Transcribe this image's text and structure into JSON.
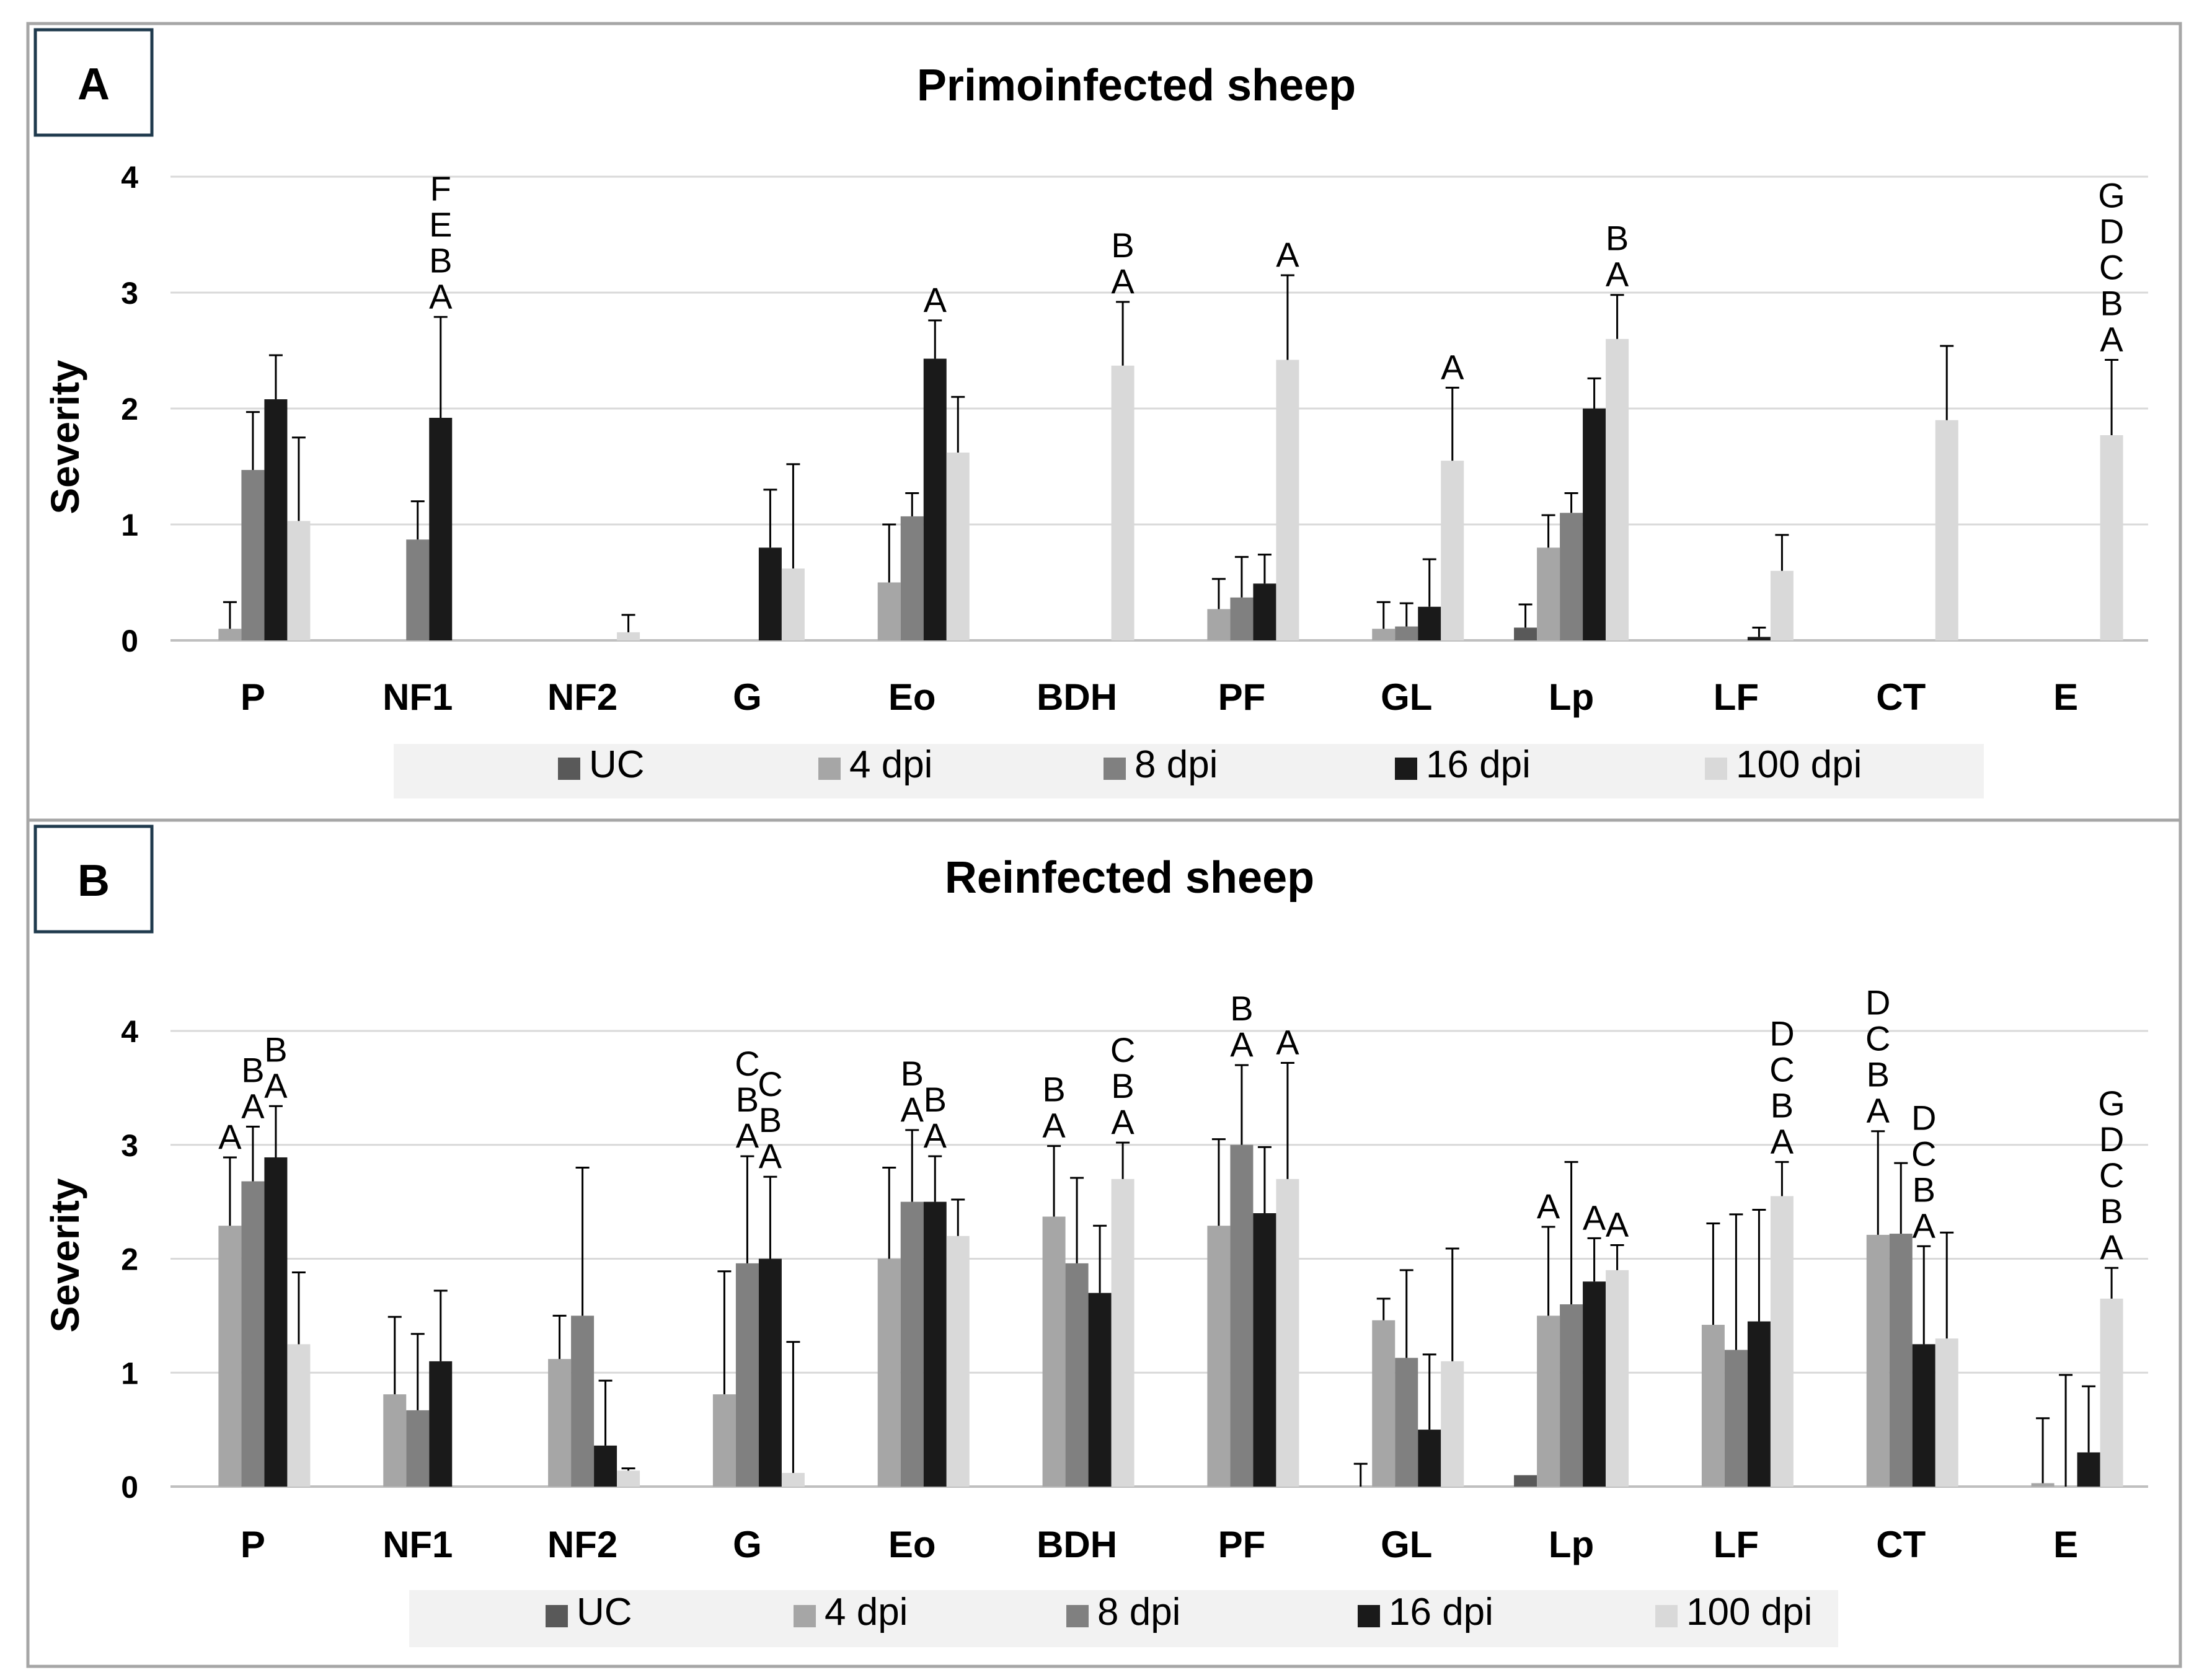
{
  "chart_data": [
    {
      "panel": "A",
      "type": "bar",
      "title": "Primoinfected sheep",
      "ylabel": "Severity",
      "ylim": [
        0,
        4
      ],
      "yticks": [
        0,
        1,
        2,
        3,
        4
      ],
      "grid": true,
      "legend_position": "bottom",
      "categories": [
        "P",
        "NF1",
        "NF2",
        "G",
        "Eo",
        "BDH",
        "PF",
        "GL",
        "Lp",
        "LF",
        "CT",
        "E"
      ],
      "series": [
        {
          "name": "UC",
          "color": "#595959",
          "values": [
            0,
            0,
            0,
            0,
            0,
            0,
            0,
            0,
            0.11,
            0,
            0,
            0
          ],
          "errors": [
            0,
            0,
            0,
            0,
            0,
            0,
            0,
            0,
            0.2,
            0,
            0,
            0
          ]
        },
        {
          "name": "4 dpi",
          "color": "#a6a6a6",
          "values": [
            0.1,
            0,
            0,
            0,
            0.5,
            0,
            0.27,
            0.1,
            0.8,
            0,
            0,
            0
          ],
          "errors": [
            0.23,
            0,
            0,
            0,
            0.5,
            0,
            0.26,
            0.23,
            0.28,
            0,
            0,
            0
          ]
        },
        {
          "name": "8 dpi",
          "color": "#808080",
          "values": [
            1.47,
            0.87,
            0,
            0,
            1.07,
            0,
            0.37,
            0.12,
            1.1,
            0,
            0,
            0
          ],
          "errors": [
            0.5,
            0.33,
            0,
            0,
            0.2,
            0,
            0.35,
            0.2,
            0.17,
            0,
            0,
            0
          ]
        },
        {
          "name": "16 dpi",
          "color": "#1a1a1a",
          "values": [
            2.08,
            1.92,
            0,
            0.8,
            2.43,
            0,
            0.49,
            0.29,
            2.0,
            0.03,
            0,
            0
          ],
          "errors": [
            0.38,
            0.87,
            0,
            0.5,
            0.33,
            0,
            0.25,
            0.41,
            0.26,
            0.08,
            0,
            0
          ]
        },
        {
          "name": "100 dpi",
          "color": "#d9d9d9",
          "values": [
            1.03,
            0,
            0.07,
            0.62,
            1.62,
            2.37,
            2.42,
            1.55,
            2.6,
            0.6,
            1.9,
            1.77
          ],
          "errors": [
            0.72,
            0,
            0.15,
            0.9,
            0.48,
            0.55,
            0.73,
            0.63,
            0.38,
            0.31,
            0.64,
            0.65
          ]
        }
      ],
      "annotations": [
        {
          "category": "NF1",
          "series": "16 dpi",
          "letters": [
            "A",
            "B",
            "E",
            "F"
          ]
        },
        {
          "category": "Eo",
          "series": "16 dpi",
          "letters": [
            "A"
          ]
        },
        {
          "category": "BDH",
          "series": "100 dpi",
          "letters": [
            "A",
            "B"
          ]
        },
        {
          "category": "PF",
          "series": "100 dpi",
          "letters": [
            "A"
          ]
        },
        {
          "category": "GL",
          "series": "100 dpi",
          "letters": [
            "A"
          ]
        },
        {
          "category": "Lp",
          "series": "100 dpi",
          "letters": [
            "A",
            "B"
          ]
        },
        {
          "category": "E",
          "series": "100 dpi",
          "letters": [
            "A",
            "B",
            "C",
            "D",
            "G"
          ]
        }
      ]
    },
    {
      "panel": "B",
      "type": "bar",
      "title": "Reinfected sheep",
      "ylabel": "Severity",
      "ylim": [
        0,
        4
      ],
      "yticks": [
        0,
        1,
        2,
        3,
        4
      ],
      "grid": true,
      "legend_position": "bottom",
      "categories": [
        "P",
        "NF1",
        "NF2",
        "G",
        "Eo",
        "BDH",
        "PF",
        "GL",
        "Lp",
        "LF",
        "CT",
        "E"
      ],
      "series": [
        {
          "name": "UC",
          "color": "#595959",
          "values": [
            0,
            0,
            0,
            0,
            0,
            0,
            0,
            0,
            0.1,
            0,
            0,
            0
          ],
          "errors": [
            0,
            0,
            0,
            0,
            0,
            0,
            0,
            0.2,
            0,
            0,
            0,
            0
          ]
        },
        {
          "name": "4 dpi",
          "color": "#a6a6a6",
          "values": [
            2.29,
            0.81,
            1.12,
            0.81,
            2.0,
            2.37,
            2.29,
            1.46,
            1.5,
            1.42,
            2.21,
            0.03
          ],
          "errors": [
            0.6,
            0.68,
            0.38,
            1.08,
            0.8,
            0.62,
            0.76,
            0.19,
            0.78,
            0.89,
            0.91,
            0.57
          ]
        },
        {
          "name": "8 dpi",
          "color": "#808080",
          "values": [
            2.68,
            0.67,
            1.5,
            1.96,
            2.5,
            1.96,
            3.0,
            1.13,
            1.6,
            1.2,
            2.22,
            0
          ],
          "errors": [
            0.48,
            0.67,
            1.3,
            0.94,
            0.63,
            0.75,
            0.7,
            0.77,
            1.25,
            1.19,
            0.62,
            0.98
          ]
        },
        {
          "name": "16 dpi",
          "color": "#1a1a1a",
          "values": [
            2.89,
            1.1,
            0.36,
            2.0,
            2.5,
            1.7,
            2.4,
            0.5,
            1.8,
            1.45,
            1.25,
            0.3
          ],
          "errors": [
            0.45,
            0.62,
            0.57,
            0.72,
            0.4,
            0.59,
            0.58,
            0.66,
            0.38,
            0.98,
            0.86,
            0.58
          ]
        },
        {
          "name": "100 dpi",
          "color": "#d9d9d9",
          "values": [
            1.25,
            0,
            0.14,
            0.12,
            2.2,
            2.7,
            2.7,
            1.1,
            1.9,
            2.55,
            1.3,
            1.65
          ],
          "errors": [
            0.63,
            0,
            0.02,
            1.15,
            0.32,
            0.32,
            1.02,
            0.99,
            0.22,
            0.3,
            0.93,
            0.27
          ]
        }
      ],
      "annotations": [
        {
          "category": "P",
          "series": "4 dpi",
          "letters": [
            "A"
          ]
        },
        {
          "category": "P",
          "series": "8 dpi",
          "letters": [
            "A",
            "B"
          ]
        },
        {
          "category": "P",
          "series": "16 dpi",
          "letters": [
            "A",
            "B"
          ]
        },
        {
          "category": "G",
          "series": "8 dpi",
          "letters": [
            "A",
            "B",
            "C"
          ]
        },
        {
          "category": "G",
          "series": "16 dpi",
          "letters": [
            "A",
            "B",
            "C"
          ]
        },
        {
          "category": "Eo",
          "series": "8 dpi",
          "letters": [
            "A",
            "B"
          ]
        },
        {
          "category": "Eo",
          "series": "16 dpi",
          "letters": [
            "A",
            "B"
          ]
        },
        {
          "category": "BDH",
          "series": "4 dpi",
          "letters": [
            "A",
            "B"
          ]
        },
        {
          "category": "BDH",
          "series": "100 dpi",
          "letters": [
            "A",
            "B",
            "C"
          ]
        },
        {
          "category": "PF",
          "series": "8 dpi",
          "letters": [
            "A",
            "B"
          ]
        },
        {
          "category": "PF",
          "series": "100 dpi",
          "letters": [
            "A"
          ]
        },
        {
          "category": "Lp",
          "series": "4 dpi",
          "letters": [
            "A"
          ]
        },
        {
          "category": "Lp",
          "series": "16 dpi",
          "letters": [
            "A"
          ]
        },
        {
          "category": "Lp",
          "series": "100 dpi",
          "letters": [
            "A"
          ]
        },
        {
          "category": "LF",
          "series": "100 dpi",
          "letters": [
            "A",
            "B",
            "C",
            "D"
          ]
        },
        {
          "category": "CT",
          "series": "4 dpi",
          "letters": [
            "A",
            "B",
            "C",
            "D"
          ]
        },
        {
          "category": "CT",
          "series": "16 dpi",
          "letters": [
            "A",
            "B",
            "C",
            "D"
          ]
        },
        {
          "category": "E",
          "series": "100 dpi",
          "letters": [
            "A",
            "B",
            "C",
            "D",
            "G"
          ]
        }
      ]
    }
  ]
}
